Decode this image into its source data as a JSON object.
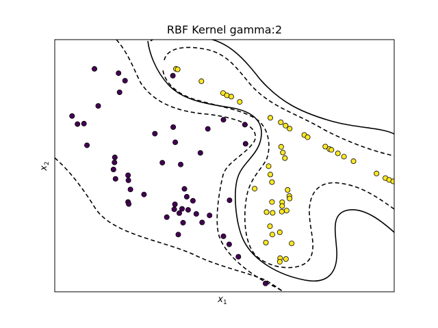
{
  "chart_data": {
    "type": "scatter",
    "title": "RBF Kernel gamma:2",
    "xlabel": "x",
    "xlabel_sub": "1",
    "ylabel": "x",
    "ylabel_sub": "2",
    "xlim": [
      0,
      1
    ],
    "ylim": [
      0,
      1
    ],
    "ticks_visible": false,
    "grid": false,
    "colors": {
      "class0": "#440154",
      "class1": "#fde725"
    },
    "series": [
      {
        "class": 0,
        "points": [
          [
            0.117,
            0.884
          ],
          [
            0.188,
            0.867
          ],
          [
            0.207,
            0.837
          ],
          [
            0.191,
            0.791
          ],
          [
            0.128,
            0.737
          ],
          [
            0.051,
            0.697
          ],
          [
            0.067,
            0.665
          ],
          [
            0.086,
            0.667
          ],
          [
            0.095,
            0.581
          ],
          [
            0.177,
            0.533
          ],
          [
            0.176,
            0.513
          ],
          [
            0.173,
            0.485
          ],
          [
            0.179,
            0.448
          ],
          [
            0.216,
            0.462
          ],
          [
            0.217,
            0.442
          ],
          [
            0.223,
            0.406
          ],
          [
            0.216,
            0.356
          ],
          [
            0.218,
            0.348
          ],
          [
            0.263,
            0.386
          ],
          [
            0.317,
            0.512
          ],
          [
            0.295,
            0.627
          ],
          [
            0.355,
            0.593
          ],
          [
            0.382,
            0.408
          ],
          [
            0.389,
            0.377
          ],
          [
            0.354,
            0.347
          ],
          [
            0.375,
            0.329
          ],
          [
            0.367,
            0.312
          ],
          [
            0.352,
            0.327
          ],
          [
            0.33,
            0.296
          ],
          [
            0.378,
            0.274
          ],
          [
            0.393,
            0.325
          ],
          [
            0.407,
            0.361
          ],
          [
            0.417,
            0.309
          ],
          [
            0.364,
            0.227
          ],
          [
            0.434,
            0.275
          ],
          [
            0.456,
            0.303
          ],
          [
            0.497,
            0.22
          ],
          [
            0.514,
            0.188
          ],
          [
            0.348,
            0.857
          ],
          [
            0.349,
            0.653
          ],
          [
            0.371,
            0.505
          ],
          [
            0.429,
            0.551
          ],
          [
            0.451,
            0.646
          ],
          [
            0.497,
            0.682
          ],
          [
            0.56,
            0.663
          ],
          [
            0.562,
            0.587
          ],
          [
            0.515,
            0.363
          ],
          [
            0.541,
            0.139
          ],
          [
            0.621,
            0.033
          ]
        ]
      },
      {
        "class": 1,
        "points": [
          [
            0.357,
            0.884
          ],
          [
            0.362,
            0.882
          ],
          [
            0.432,
            0.835
          ],
          [
            0.496,
            0.788
          ],
          [
            0.507,
            0.779
          ],
          [
            0.52,
            0.774
          ],
          [
            0.545,
            0.753
          ],
          [
            0.635,
            0.69
          ],
          [
            0.666,
            0.672
          ],
          [
            0.68,
            0.659
          ],
          [
            0.692,
            0.647
          ],
          [
            0.735,
            0.622
          ],
          [
            0.745,
            0.613
          ],
          [
            0.797,
            0.576
          ],
          [
            0.809,
            0.566
          ],
          [
            0.815,
            0.563
          ],
          [
            0.834,
            0.549
          ],
          [
            0.852,
            0.536
          ],
          [
            0.88,
            0.518
          ],
          [
            0.948,
            0.469
          ],
          [
            0.974,
            0.451
          ],
          [
            0.985,
            0.444
          ],
          [
            0.997,
            0.438
          ],
          [
            0.667,
            0.575
          ],
          [
            0.672,
            0.552
          ],
          [
            0.678,
            0.53
          ],
          [
            0.63,
            0.498
          ],
          [
            0.635,
            0.465
          ],
          [
            0.64,
            0.435
          ],
          [
            0.589,
            0.409
          ],
          [
            0.686,
            0.404
          ],
          [
            0.691,
            0.38
          ],
          [
            0.692,
            0.37
          ],
          [
            0.64,
            0.356
          ],
          [
            0.67,
            0.355
          ],
          [
            0.67,
            0.34
          ],
          [
            0.683,
            0.322
          ],
          [
            0.669,
            0.318
          ],
          [
            0.642,
            0.313
          ],
          [
            0.624,
            0.316
          ],
          [
            0.634,
            0.26
          ],
          [
            0.641,
            0.227
          ],
          [
            0.663,
            0.236
          ],
          [
            0.698,
            0.192
          ],
          [
            0.622,
            0.195
          ],
          [
            0.664,
            0.133
          ],
          [
            0.663,
            0.119
          ],
          [
            0.681,
            0.13
          ]
        ]
      }
    ],
    "contour_levels": [
      {
        "level": -1,
        "style": "dashed"
      },
      {
        "level": 0,
        "style": "solid"
      },
      {
        "level": 1,
        "style": "dashed"
      }
    ]
  }
}
